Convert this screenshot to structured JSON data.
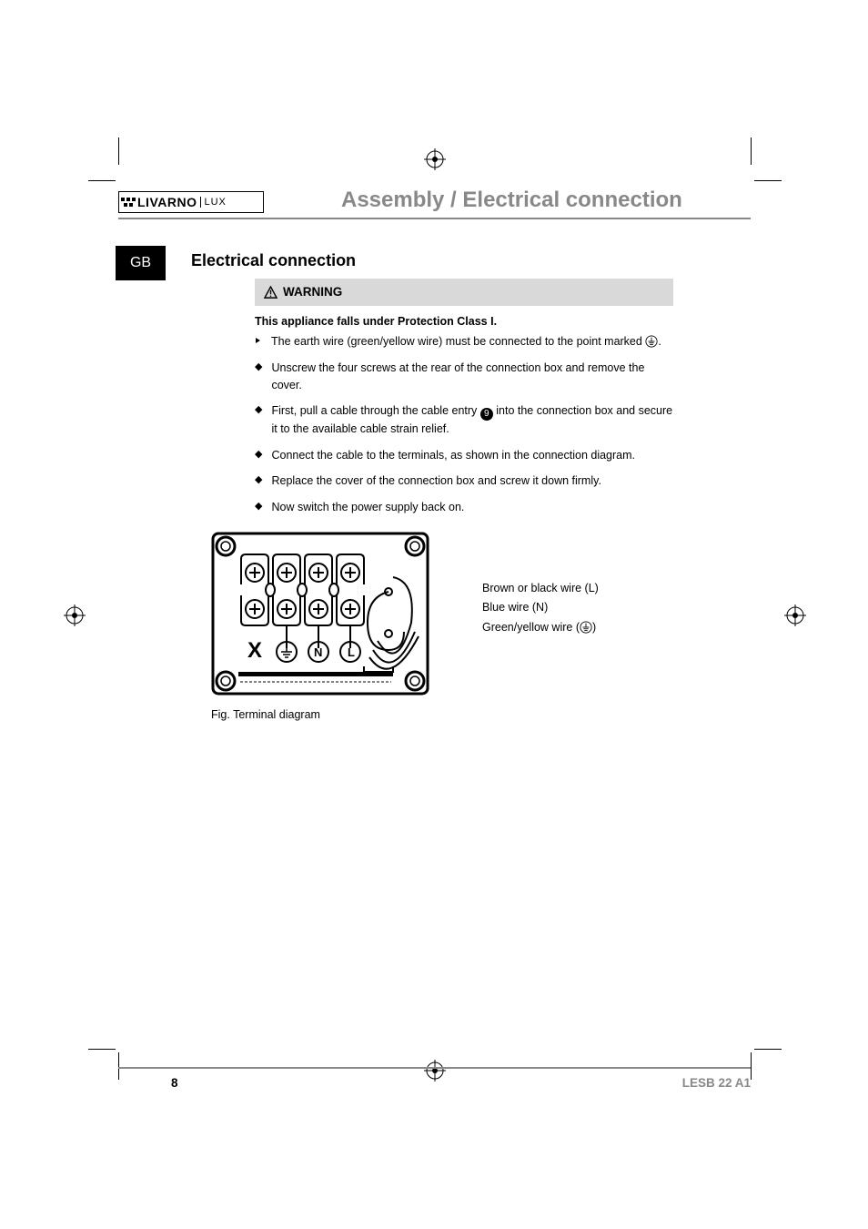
{
  "colors": {
    "text": "#000000",
    "muted": "#888888",
    "warn_bg": "#d9d9d9",
    "tab_bg": "#000000",
    "tab_text": "#ffffff",
    "page_bg": "#ffffff"
  },
  "typography": {
    "body_fontsize": 12.5,
    "h2_fontsize": 18,
    "breadcrumb_fontsize": 24,
    "footer_fontsize": 13.5
  },
  "brand": {
    "name": "LIVARNO",
    "suffix": "LUX"
  },
  "breadcrumb": "Assembly / Electrical connection",
  "lang_tab": "GB",
  "section_heading": "Electrical connection",
  "warning": {
    "label": "WARNING",
    "strong": "This appliance falls under Protection Class I.",
    "earth_instruction_pre": "The earth wire (green/yellow wire) must be connected to the point marked ",
    "earth_instruction_post": "."
  },
  "steps": [
    "Unscrew the four screws at the rear of the connection box and remove the cover.",
    "First, pull a cable through the cable entry __CALLOUT9__ into the connection box and secure it to the available cable strain relief.",
    "Connect the cable to the terminals, as shown in the connection diagram.",
    "Replace the cover of the connection box and screw it down firmly.",
    "Now switch the power supply back on."
  ],
  "callout_9": "9",
  "wire_legend": {
    "l": "Brown or black wire (L)",
    "n": "Blue wire (N)",
    "e_pre": "Green/yellow wire (",
    "e_post": ")"
  },
  "figure_caption": "Fig. Terminal diagram",
  "diagram": {
    "type": "schematic",
    "stroke": "#000000",
    "stroke_width": 2,
    "background": "#ffffff",
    "terminal_labels": [
      "X",
      "earth",
      "N",
      "L"
    ],
    "corner_holes": 4,
    "top_terminals": 4,
    "bottom_terminals": 4
  },
  "footer": {
    "page": "8",
    "model": "LESB 22 A1"
  }
}
